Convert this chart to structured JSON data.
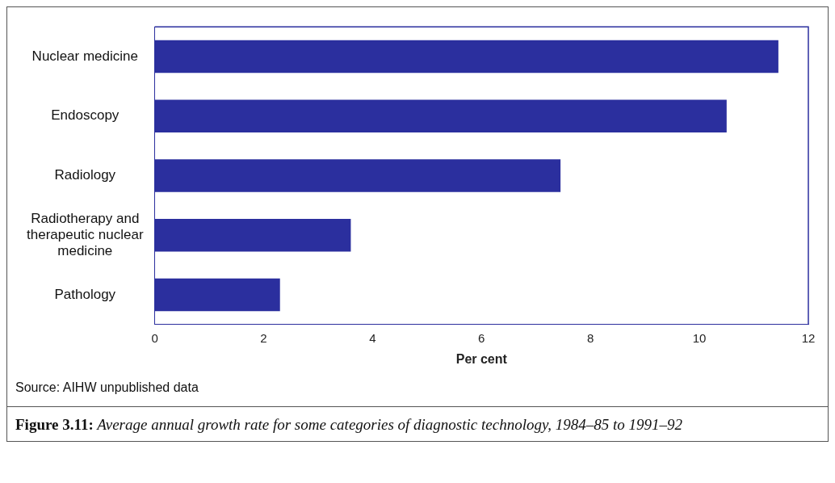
{
  "chart_data": {
    "type": "bar",
    "orientation": "horizontal",
    "title": "Figure 3.11: Average annual growth rate for some categories of diagnostic technology, 1984–85 to 1991–92",
    "xlabel": "Per cent",
    "categories": [
      "Nuclear medicine",
      "Endoscopy",
      "Radiology",
      "Radiotherapy and therapeutic nuclear medicine",
      "Pathology"
    ],
    "values": [
      11.45,
      10.5,
      7.45,
      3.6,
      2.3
    ],
    "color": "#2b2f9e",
    "xlim": [
      0,
      12
    ],
    "xticks": [
      0,
      2,
      4,
      6,
      8,
      10,
      12
    ],
    "grid": false,
    "legend": false,
    "annotations": [
      "Source: AIHW unpublished data"
    ]
  }
}
